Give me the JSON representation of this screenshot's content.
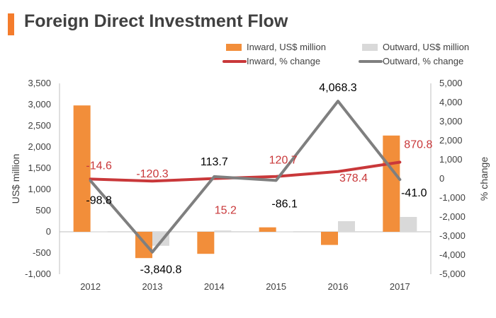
{
  "title": "Foreign Direct Investment Flow",
  "colors": {
    "accent": "#f47c2c",
    "inward_bar": "#f28e3a",
    "outward_bar": "#d9d9d9",
    "inward_line": "#c9383a",
    "outward_line": "#7f7f7f",
    "inward_label": "#c9383a",
    "outward_label": "#000000"
  },
  "chart_data": {
    "type": "bar",
    "categories": [
      "2012",
      "2013",
      "2014",
      "2015",
      "2016",
      "2017"
    ],
    "ylabel": "US$ million",
    "y2label": "% change",
    "ylim": [
      -1000,
      3500
    ],
    "y2lim": [
      -5000,
      5000
    ],
    "yticks": [
      "3,500",
      "3,000",
      "2,500",
      "2,000",
      "1,500",
      "1,000",
      "500",
      "0",
      "-500",
      "-1,000"
    ],
    "y2ticks": [
      "5,000",
      "4,000",
      "3,000",
      "2,000",
      "1,000",
      "0",
      "-1,000",
      "-2,000",
      "-3,000",
      "-4,000",
      "-5,000"
    ],
    "legend_position": "top-right",
    "series": [
      {
        "name": "Inward, US$ million",
        "kind": "bar",
        "axis": "left",
        "values": [
          2980,
          -620,
          -520,
          105,
          -310,
          2270
        ]
      },
      {
        "name": "Outward, US$ million",
        "kind": "bar",
        "axis": "left",
        "values": [
          5,
          -330,
          30,
          5,
          250,
          350
        ]
      },
      {
        "name": "Inward, % change",
        "kind": "line",
        "axis": "right",
        "values": [
          -14.6,
          -120.3,
          15.2,
          120.7,
          378.4,
          870.8
        ],
        "labels": [
          "-14.6",
          "-120.3",
          "15.2",
          "120.7",
          "378.4",
          "870.8"
        ]
      },
      {
        "name": "Outward, % change",
        "kind": "line",
        "axis": "right",
        "values": [
          -98.8,
          -3840.8,
          113.7,
          -86.1,
          4068.3,
          -41.0
        ],
        "labels": [
          "-98.8",
          "-3,840.8",
          "113.7",
          "-86.1",
          "4,068.3",
          "-41.0"
        ]
      }
    ]
  }
}
